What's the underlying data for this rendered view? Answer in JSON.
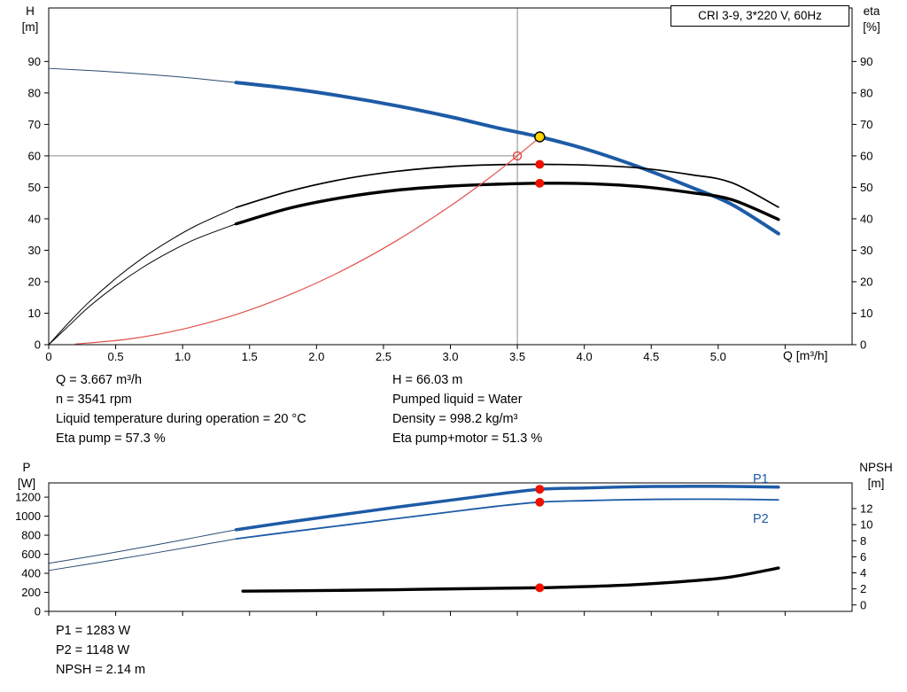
{
  "header": {
    "title": "CRI 3-9, 3*220 V, 60Hz"
  },
  "axes": {
    "h": "H",
    "m": "[m]",
    "eta": "eta",
    "pct": "[%]",
    "q": "Q [m³/h]",
    "p": "P",
    "w": "[W]",
    "npsh": "NPSH",
    "m2": "[m]",
    "p1": "P1",
    "p2": "P2"
  },
  "info_top_left": [
    "Q = 3.667 m³/h",
    "n = 3541 rpm",
    "Liquid temperature during operation = 20 °C",
    "Eta pump = 57.3 %"
  ],
  "info_top_right": [
    "H = 66.03 m",
    "Pumped liquid = Water",
    "Density = 998.2 kg/m³",
    "Eta pump+motor = 51.3 %"
  ],
  "info_bottom": [
    "P1 = 1283 W",
    "P2 = 1148 W",
    "NPSH = 2.14 m"
  ],
  "colors": {
    "curve_blue": "#1d5ba6",
    "extension_navy": "#2a4a72",
    "system_red": "#e0524c",
    "marker_red": "#ee1100",
    "duty_yellow": "#ffd400",
    "crosshair_gray": "#8a8a8a"
  },
  "chart_data": [
    {
      "name": "qh-eta-chart",
      "type": "line",
      "title": "CRI 3-9, 3*220 V, 60Hz",
      "x_axis": {
        "label": "Q [m³/h]",
        "range": [
          0,
          6.0
        ],
        "ticks": [
          0,
          0.5,
          1,
          1.5,
          2,
          2.5,
          3,
          3.5,
          4,
          4.5,
          5,
          5.5
        ],
        "tick_labels": [
          "0",
          "0.5",
          "1.0",
          "1.5",
          "2.0",
          "2.5",
          "3.0",
          "3.5",
          "4.0",
          "4.5",
          "5.0",
          null
        ]
      },
      "y_left": {
        "label": "H [m]",
        "range": [
          0,
          107
        ],
        "ticks": [
          0,
          10,
          20,
          30,
          40,
          50,
          60,
          70,
          80,
          90
        ],
        "tick_labels": [
          "0",
          "10",
          "20",
          "30",
          "40",
          "50",
          "60",
          "70",
          "80",
          "90"
        ]
      },
      "y_right": {
        "label": "eta [%]",
        "range": [
          0,
          107
        ],
        "ticks": [
          0,
          10,
          20,
          30,
          40,
          50,
          60,
          70,
          80,
          90
        ],
        "tick_labels": [
          "0",
          "10",
          "20",
          "30",
          "40",
          "50",
          "60",
          "70",
          "80",
          "90"
        ]
      },
      "crosshair": {
        "q": 3.5,
        "h": 60
      },
      "series": [
        {
          "id": "qh-extension",
          "name": "Pump curve H(Q) out of range",
          "axis": "left",
          "color": "#2a4a72",
          "width": 1,
          "points": [
            [
              0,
              87.8
            ],
            [
              0.4,
              86.9
            ],
            [
              0.8,
              85.7
            ],
            [
              1.1,
              84.6
            ],
            [
              1.4,
              83.3
            ]
          ]
        },
        {
          "id": "qh",
          "name": "Pump curve H(Q)",
          "axis": "left",
          "color": "#1d5ba6",
          "width": 4,
          "points": [
            [
              1.4,
              83.3
            ],
            [
              1.8,
              81.4
            ],
            [
              2.2,
              78.9
            ],
            [
              2.6,
              75.9
            ],
            [
              3.0,
              72.4
            ],
            [
              3.35,
              68.9
            ],
            [
              3.667,
              66.03
            ],
            [
              4.0,
              62.3
            ],
            [
              4.4,
              56.6
            ],
            [
              4.8,
              50.0
            ],
            [
              5.1,
              44.6
            ],
            [
              5.45,
              35.3
            ]
          ]
        },
        {
          "id": "eta-pump-extension",
          "name": "Eta pump out of range",
          "axis": "right",
          "color": "#000000",
          "width": 1,
          "points": [
            [
              0,
              0
            ],
            [
              0.15,
              7
            ],
            [
              0.3,
              13.5
            ],
            [
              0.5,
              21
            ],
            [
              0.7,
              27.5
            ],
            [
              0.9,
              33
            ],
            [
              1.1,
              37.8
            ],
            [
              1.4,
              43.6
            ]
          ]
        },
        {
          "id": "eta-pump",
          "name": "Eta pump",
          "axis": "right",
          "color": "#000000",
          "width": 1.7,
          "points": [
            [
              1.4,
              43.6
            ],
            [
              1.8,
              48.8
            ],
            [
              2.2,
              52.6
            ],
            [
              2.6,
              55.1
            ],
            [
              3.0,
              56.6
            ],
            [
              3.35,
              57.2
            ],
            [
              3.667,
              57.3
            ],
            [
              4.0,
              57.1
            ],
            [
              4.4,
              56.2
            ],
            [
              4.8,
              54.0
            ],
            [
              5.1,
              51.5
            ],
            [
              5.45,
              43.7
            ]
          ]
        },
        {
          "id": "eta-pump-motor-extension",
          "name": "Eta pump+motor out of range",
          "axis": "right",
          "color": "#000000",
          "width": 1,
          "points": [
            [
              0,
              0
            ],
            [
              0.15,
              6
            ],
            [
              0.3,
              12
            ],
            [
              0.5,
              18.7
            ],
            [
              0.7,
              24.5
            ],
            [
              0.9,
              29.4
            ],
            [
              1.1,
              33.6
            ],
            [
              1.4,
              38.4
            ]
          ]
        },
        {
          "id": "eta-pump-motor",
          "name": "Eta pump+motor",
          "axis": "right",
          "color": "#000000",
          "width": 3.4,
          "points": [
            [
              1.4,
              38.4
            ],
            [
              1.8,
              43.4
            ],
            [
              2.2,
              46.8
            ],
            [
              2.6,
              49.1
            ],
            [
              3.0,
              50.4
            ],
            [
              3.35,
              51.0
            ],
            [
              3.667,
              51.3
            ],
            [
              4.0,
              51.2
            ],
            [
              4.4,
              50.3
            ],
            [
              4.8,
              48.3
            ],
            [
              5.1,
              46.1
            ],
            [
              5.45,
              39.8
            ]
          ]
        },
        {
          "id": "system-curve",
          "name": "System curve through duty point",
          "axis": "left",
          "color": "#e0524c",
          "width": 1.2,
          "points": [
            [
              0.2,
              0.2
            ],
            [
              0.6,
              1.8
            ],
            [
              1.0,
              4.9
            ],
            [
              1.4,
              9.6
            ],
            [
              1.8,
              15.9
            ],
            [
              2.2,
              23.7
            ],
            [
              2.6,
              33.1
            ],
            [
              3.0,
              44.1
            ],
            [
              3.3,
              53.3
            ],
            [
              3.5,
              60.0
            ],
            [
              3.667,
              65.9
            ]
          ]
        }
      ],
      "markers": [
        {
          "id": "requested-duty-point",
          "q": 3.5,
          "value": 60,
          "axis": "left",
          "r": 4.5,
          "fill": "none",
          "stroke": "#e0453f",
          "stroke_width": 1.4
        },
        {
          "id": "actual-duty-point",
          "q": 3.667,
          "value": 66.03,
          "axis": "left",
          "r": 5.5,
          "fill": "#ffd400",
          "stroke": "#000000",
          "stroke_width": 1.4
        },
        {
          "id": "eta-pump-point",
          "q": 3.667,
          "value": 57.3,
          "axis": "right",
          "r": 5,
          "fill": "#ee1100"
        },
        {
          "id": "eta-pump-motor-point",
          "q": 3.667,
          "value": 51.3,
          "axis": "right",
          "r": 5,
          "fill": "#ee1100"
        }
      ]
    },
    {
      "name": "power-npsh-chart",
      "type": "line",
      "x_axis": {
        "label": "Q [m³/h]",
        "range": [
          0,
          6.0
        ],
        "ticks": [
          0,
          0.5,
          1,
          1.5,
          2,
          2.5,
          3,
          3.5,
          4,
          4.5,
          5,
          5.5
        ],
        "tick_labels": []
      },
      "y_left": {
        "label": "P [W]",
        "range": [
          0,
          1350
        ],
        "ticks": [
          0,
          200,
          400,
          600,
          800,
          1000,
          1200
        ],
        "tick_labels": [
          "0",
          "200",
          "400",
          "600",
          "800",
          "1000",
          "1200"
        ]
      },
      "y_right": {
        "label": "NPSH [m]",
        "range": [
          -0.8,
          15.2
        ],
        "ticks": [
          0,
          2,
          4,
          6,
          8,
          10,
          12
        ],
        "tick_labels": [
          "0",
          "2",
          "4",
          "6",
          "8",
          "10",
          "12"
        ]
      },
      "series": [
        {
          "id": "p1-extension",
          "name": "P1 out of range",
          "axis": "left",
          "color": "#2a4a72",
          "width": 1,
          "points": [
            [
              0,
              505
            ],
            [
              0.4,
              598
            ],
            [
              0.8,
              698
            ],
            [
              1.1,
              778
            ],
            [
              1.4,
              858
            ]
          ]
        },
        {
          "id": "p1",
          "name": "P1 power input",
          "axis": "left",
          "color": "#1d5ba6",
          "width": 3.5,
          "points": [
            [
              1.4,
              858
            ],
            [
              1.8,
              940
            ],
            [
              2.2,
              1018
            ],
            [
              2.6,
              1095
            ],
            [
              3.0,
              1168
            ],
            [
              3.35,
              1232
            ],
            [
              3.667,
              1283
            ],
            [
              4.0,
              1297
            ],
            [
              4.4,
              1310
            ],
            [
              4.8,
              1314
            ],
            [
              5.1,
              1313
            ],
            [
              5.45,
              1306
            ]
          ]
        },
        {
          "id": "p2-extension",
          "name": "P2 out of range",
          "axis": "left",
          "color": "#2a4a72",
          "width": 1,
          "points": [
            [
              0,
              430
            ],
            [
              0.4,
              520
            ],
            [
              0.8,
              615
            ],
            [
              1.1,
              688
            ],
            [
              1.4,
              762
            ]
          ]
        },
        {
          "id": "p2",
          "name": "P2 shaft power",
          "axis": "left",
          "color": "#1d5ba6",
          "width": 1.8,
          "points": [
            [
              1.4,
              762
            ],
            [
              1.8,
              835
            ],
            [
              2.2,
              905
            ],
            [
              2.6,
              975
            ],
            [
              3.0,
              1045
            ],
            [
              3.35,
              1105
            ],
            [
              3.667,
              1148
            ],
            [
              4.0,
              1163
            ],
            [
              4.4,
              1175
            ],
            [
              4.8,
              1179
            ],
            [
              5.1,
              1178
            ],
            [
              5.45,
              1172
            ]
          ]
        },
        {
          "id": "npsh",
          "name": "NPSH required",
          "axis": "right",
          "color": "#000000",
          "width": 3.4,
          "points": [
            [
              1.45,
              1.72
            ],
            [
              1.8,
              1.76
            ],
            [
              2.2,
              1.82
            ],
            [
              2.6,
              1.9
            ],
            [
              3.0,
              2.0
            ],
            [
              3.35,
              2.08
            ],
            [
              3.667,
              2.14
            ],
            [
              4.0,
              2.28
            ],
            [
              4.4,
              2.55
            ],
            [
              4.8,
              3.0
            ],
            [
              5.1,
              3.5
            ],
            [
              5.45,
              4.6
            ]
          ]
        }
      ],
      "markers": [
        {
          "id": "p1-point",
          "q": 3.667,
          "value": 1283,
          "axis": "left",
          "r": 5,
          "fill": "#ee1100"
        },
        {
          "id": "p2-point",
          "q": 3.667,
          "value": 1148,
          "axis": "left",
          "r": 5,
          "fill": "#ee1100"
        },
        {
          "id": "npsh-point",
          "q": 3.667,
          "value": 2.14,
          "axis": "right",
          "r": 5,
          "fill": "#ee1100"
        }
      ]
    }
  ]
}
